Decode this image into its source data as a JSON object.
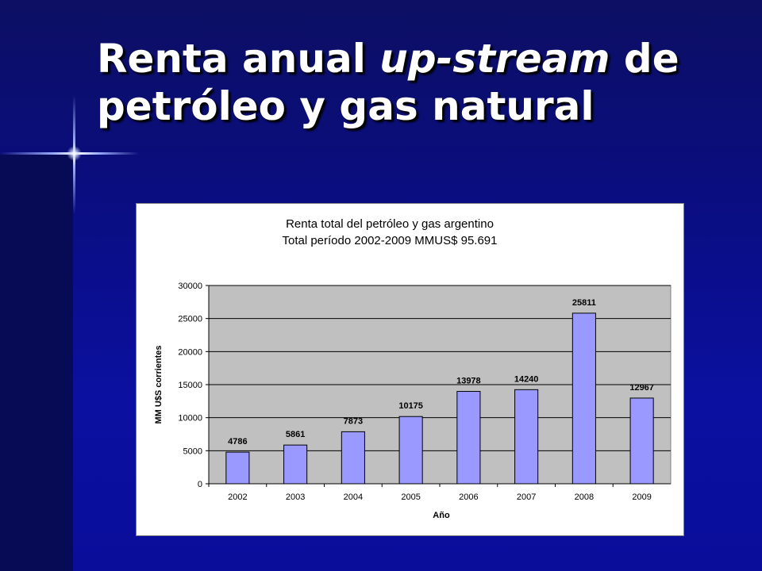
{
  "slide": {
    "title_part1": "Renta anual ",
    "title_italic": "up-stream",
    "title_part2": " de petróleo y gas natural"
  },
  "chart_data": {
    "type": "bar",
    "title": "Renta total del petróleo y gas argentino",
    "subtitle": "Total período 2002-2009 MMUS$ 95.691",
    "xlabel": "Año",
    "ylabel": "MM U$S corrientes",
    "categories": [
      "2002",
      "2003",
      "2004",
      "2005",
      "2006",
      "2007",
      "2008",
      "2009"
    ],
    "values": [
      4786,
      5861,
      7873,
      10175,
      13978,
      14240,
      25811,
      12967
    ],
    "value_labels": [
      "4786",
      "5861",
      "7873",
      "10175",
      "13978",
      "14240",
      "25811",
      "12967"
    ],
    "ylim": [
      0,
      30000
    ],
    "yticks": [
      "0",
      "5000",
      "10000",
      "15000",
      "20000",
      "25000",
      "30000"
    ],
    "grid": true,
    "legend": "none",
    "colors": {
      "bar_fill": "#9999ff",
      "plot_bg": "#c0c0c0",
      "gridline": "#000000"
    }
  }
}
